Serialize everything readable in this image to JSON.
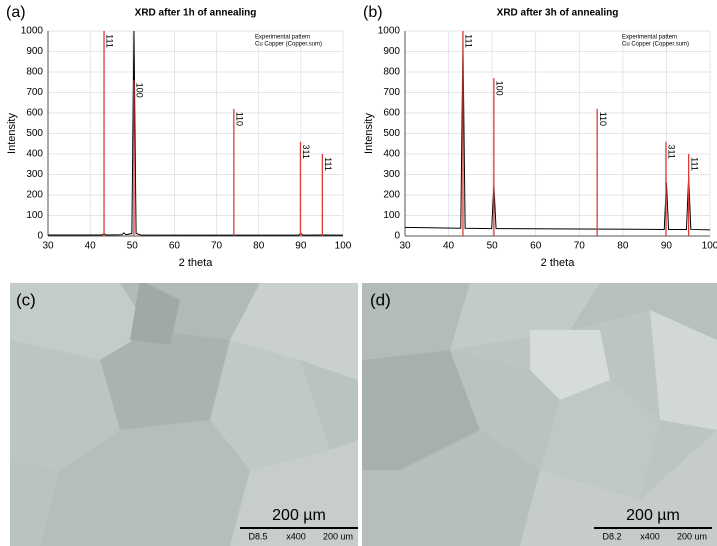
{
  "chart_data": [
    {
      "type": "line",
      "label": "(a)",
      "title": "XRD after 1h of annealing",
      "xlabel": "2 theta",
      "ylabel": "Intensity",
      "xlim": [
        30,
        100
      ],
      "xticks": [
        30,
        40,
        50,
        60,
        70,
        80,
        90,
        100
      ],
      "ylim": [
        0,
        1000
      ],
      "yticks": [
        0,
        100,
        200,
        300,
        400,
        500,
        600,
        700,
        800,
        900,
        1000
      ],
      "grid": true,
      "series": [
        {
          "name": "Experimental pattern",
          "color": "#000000",
          "x": [
            30,
            42.8,
            43.3,
            43.8,
            47.5,
            48,
            48.5,
            49.9,
            50.4,
            50.9,
            52,
            70,
            89.5,
            90,
            90.5,
            95.1,
            100
          ],
          "values": [
            5,
            5,
            10,
            5,
            6,
            15,
            6,
            12,
            1000,
            12,
            5,
            4,
            4,
            12,
            4,
            5,
            4
          ]
        },
        {
          "name": "Cu Copper (Copper.sum)",
          "color": "#e03a3a",
          "style": "stick",
          "x": [
            43.3,
            50.4,
            74.1,
            89.9,
            95.1
          ],
          "values": [
            1000,
            760,
            620,
            460,
            400
          ],
          "labels": [
            "111",
            "100",
            "110",
            "311",
            "111"
          ]
        }
      ]
    },
    {
      "type": "line",
      "label": "(b)",
      "title": "XRD after 3h of annealing",
      "xlabel": "2 theta",
      "ylabel": "Intensity",
      "xlim": [
        30,
        100
      ],
      "xticks": [
        30,
        40,
        50,
        60,
        70,
        80,
        90,
        100
      ],
      "ylim": [
        0,
        1000
      ],
      "yticks": [
        0,
        100,
        200,
        300,
        400,
        500,
        600,
        700,
        800,
        900,
        1000
      ],
      "grid": true,
      "series": [
        {
          "name": "Experimental pattern",
          "color": "#000000",
          "x": [
            30,
            42.8,
            43.3,
            43.8,
            49.9,
            50.4,
            50.9,
            70,
            89.5,
            90,
            90.5,
            94.6,
            95.1,
            95.6,
            100
          ],
          "values": [
            42,
            38,
            950,
            38,
            36,
            250,
            36,
            34,
            32,
            260,
            32,
            32,
            290,
            32,
            30
          ]
        },
        {
          "name": "Cu Copper (Copper.sum)",
          "color": "#e03a3a",
          "style": "stick",
          "x": [
            43.3,
            50.4,
            74.1,
            89.9,
            95.1
          ],
          "values": [
            1000,
            770,
            620,
            460,
            400
          ],
          "labels": [
            "111",
            "100",
            "110",
            "311",
            "111"
          ]
        }
      ]
    }
  ],
  "micrographs": [
    {
      "label": "(c)",
      "scale_bar": "200 µm",
      "info": [
        "D8.5",
        "x400",
        "200 um"
      ]
    },
    {
      "label": "(d)",
      "scale_bar": "200 µm",
      "info": [
        "D8.2",
        "x400",
        "200 um"
      ]
    }
  ]
}
